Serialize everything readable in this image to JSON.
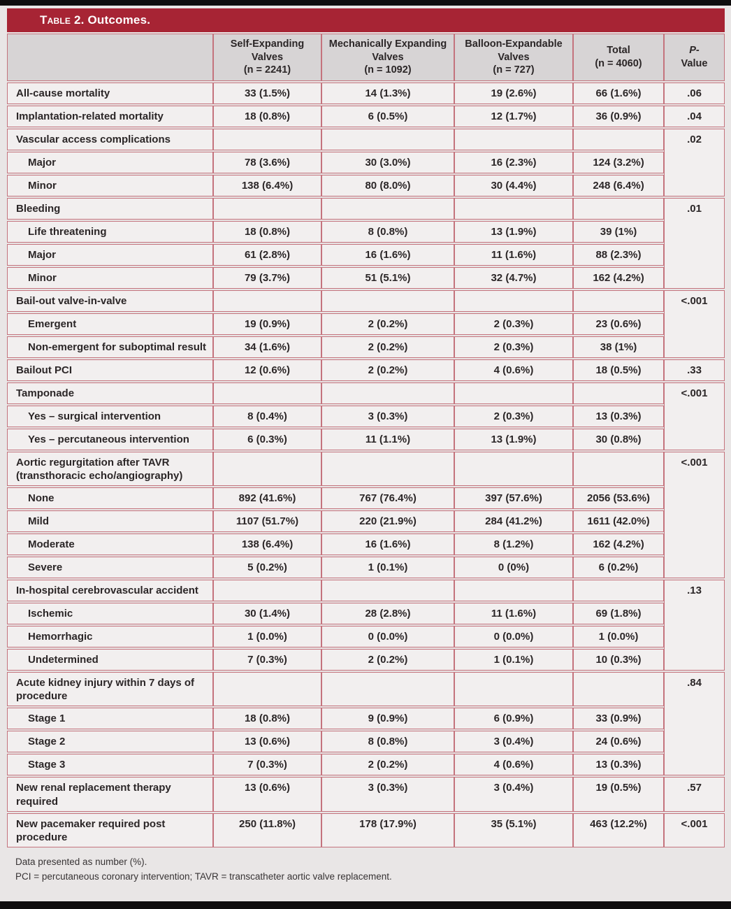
{
  "colors": {
    "accent": "#a72434",
    "border": "#c4737d",
    "cell_background": "#f2efef",
    "header_background": "#d7d4d5",
    "page_background": "#e9e6e6",
    "text": "#2b2627"
  },
  "table": {
    "title_prefix": "Table 2.",
    "title_rest": "Outcomes.",
    "columns": [
      {
        "name": "Self-Expanding Valves",
        "n": "(n = 2241)"
      },
      {
        "name": "Mechanically Expanding Valves",
        "n": "(n = 1092)"
      },
      {
        "name": "Balloon-Expandable Valves",
        "n": "(n = 727)"
      },
      {
        "name": "Total",
        "n": "(n = 4060)"
      }
    ],
    "p_header": {
      "line1": "P-",
      "line2": "Value"
    },
    "rows": [
      {
        "label": "All-cause mortality",
        "indent": 0,
        "values": [
          "33 (1.5%)",
          "14 (1.3%)",
          "19 (2.6%)",
          "66 (1.6%)"
        ],
        "p": ".06",
        "span": 1
      },
      {
        "label": "Implantation-related mortality",
        "indent": 0,
        "values": [
          "18 (0.8%)",
          "6 (0.5%)",
          "12 (1.7%)",
          "36 (0.9%)"
        ],
        "p": ".04",
        "span": 1
      },
      {
        "label": "Vascular access complications",
        "indent": 0,
        "values": [
          "",
          "",
          "",
          ""
        ],
        "p": ".02",
        "span": 3
      },
      {
        "label": "Major",
        "indent": 1,
        "values": [
          "78 (3.6%)",
          "30 (3.0%)",
          "16 (2.3%)",
          "124 (3.2%)"
        ]
      },
      {
        "label": "Minor",
        "indent": 1,
        "values": [
          "138 (6.4%)",
          "80 (8.0%)",
          "30 (4.4%)",
          "248 (6.4%)"
        ]
      },
      {
        "label": "Bleeding",
        "indent": 0,
        "values": [
          "",
          "",
          "",
          ""
        ],
        "p": ".01",
        "span": 4
      },
      {
        "label": "Life threatening",
        "indent": 1,
        "values": [
          "18 (0.8%)",
          "8 (0.8%)",
          "13 (1.9%)",
          "39 (1%)"
        ]
      },
      {
        "label": "Major",
        "indent": 1,
        "values": [
          "61 (2.8%)",
          "16 (1.6%)",
          "11 (1.6%)",
          "88 (2.3%)"
        ]
      },
      {
        "label": "Minor",
        "indent": 1,
        "values": [
          "79 (3.7%)",
          "51 (5.1%)",
          "32 (4.7%)",
          "162 (4.2%)"
        ]
      },
      {
        "label": "Bail-out valve-in-valve",
        "indent": 0,
        "values": [
          "",
          "",
          "",
          ""
        ],
        "p": "<.001",
        "span": 3
      },
      {
        "label": "Emergent",
        "indent": 1,
        "values": [
          "19 (0.9%)",
          "2 (0.2%)",
          "2 (0.3%)",
          "23 (0.6%)"
        ]
      },
      {
        "label": "Non-emergent for suboptimal result",
        "indent": 1,
        "values": [
          "34 (1.6%)",
          "2 (0.2%)",
          "2 (0.3%)",
          "38 (1%)"
        ]
      },
      {
        "label": "Bailout PCI",
        "indent": 0,
        "values": [
          "12 (0.6%)",
          "2 (0.2%)",
          "4 (0.6%)",
          "18 (0.5%)"
        ],
        "p": ".33",
        "span": 1
      },
      {
        "label": "Tamponade",
        "indent": 0,
        "values": [
          "",
          "",
          "",
          ""
        ],
        "p": "<.001",
        "span": 3
      },
      {
        "label": "Yes – surgical intervention",
        "indent": 1,
        "values": [
          "8 (0.4%)",
          "3 (0.3%)",
          "2 (0.3%)",
          "13 (0.3%)"
        ]
      },
      {
        "label": "Yes – percutaneous intervention",
        "indent": 1,
        "values": [
          "6 (0.3%)",
          "11 (1.1%)",
          "13 (1.9%)",
          "30 (0.8%)"
        ]
      },
      {
        "label": "Aortic regurgitation after TAVR (transthoracic echo/angiography)",
        "indent": 0,
        "values": [
          "",
          "",
          "",
          ""
        ],
        "p": "<.001",
        "span": 5
      },
      {
        "label": "None",
        "indent": 1,
        "values": [
          "892 (41.6%)",
          "767 (76.4%)",
          "397 (57.6%)",
          "2056 (53.6%)"
        ]
      },
      {
        "label": "Mild",
        "indent": 1,
        "values": [
          "1107 (51.7%)",
          "220 (21.9%)",
          "284 (41.2%)",
          "1611 (42.0%)"
        ]
      },
      {
        "label": "Moderate",
        "indent": 1,
        "values": [
          "138 (6.4%)",
          "16 (1.6%)",
          "8 (1.2%)",
          "162 (4.2%)"
        ]
      },
      {
        "label": "Severe",
        "indent": 1,
        "values": [
          "5 (0.2%)",
          "1 (0.1%)",
          "0 (0%)",
          "6 (0.2%)"
        ]
      },
      {
        "label": "In-hospital cerebrovascular accident",
        "indent": 0,
        "values": [
          "",
          "",
          "",
          ""
        ],
        "p": ".13",
        "span": 4
      },
      {
        "label": "Ischemic",
        "indent": 1,
        "values": [
          "30 (1.4%)",
          "28 (2.8%)",
          "11 (1.6%)",
          "69 (1.8%)"
        ]
      },
      {
        "label": "Hemorrhagic",
        "indent": 1,
        "values": [
          "1 (0.0%)",
          "0 (0.0%)",
          "0 (0.0%)",
          "1 (0.0%)"
        ]
      },
      {
        "label": "Undetermined",
        "indent": 1,
        "values": [
          "7 (0.3%)",
          "2 (0.2%)",
          "1 (0.1%)",
          "10 (0.3%)"
        ]
      },
      {
        "label": "Acute kidney injury within 7 days of procedure",
        "indent": 0,
        "values": [
          "",
          "",
          "",
          ""
        ],
        "p": ".84",
        "span": 4
      },
      {
        "label": "Stage 1",
        "indent": 1,
        "values": [
          "18 (0.8%)",
          "9 (0.9%)",
          "6 (0.9%)",
          "33 (0.9%)"
        ]
      },
      {
        "label": "Stage 2",
        "indent": 1,
        "values": [
          "13 (0.6%)",
          "8 (0.8%)",
          "3 (0.4%)",
          "24 (0.6%)"
        ]
      },
      {
        "label": "Stage 3",
        "indent": 1,
        "values": [
          "7 (0.3%)",
          "2 (0.2%)",
          "4 (0.6%)",
          "13 (0.3%)"
        ]
      },
      {
        "label": "New renal replacement therapy required",
        "indent": 0,
        "values": [
          "13 (0.6%)",
          "3 (0.3%)",
          "3 (0.4%)",
          "19 (0.5%)"
        ],
        "p": ".57",
        "span": 1
      },
      {
        "label": "New pacemaker required post procedure",
        "indent": 0,
        "values": [
          "250 (11.8%)",
          "178 (17.9%)",
          "35 (5.1%)",
          "463 (12.2%)"
        ],
        "p": "<.001",
        "span": 1
      }
    ],
    "footnotes": [
      "Data presented as number (%).",
      "PCI = percutaneous coronary intervention; TAVR = transcatheter aortic valve replacement."
    ]
  }
}
